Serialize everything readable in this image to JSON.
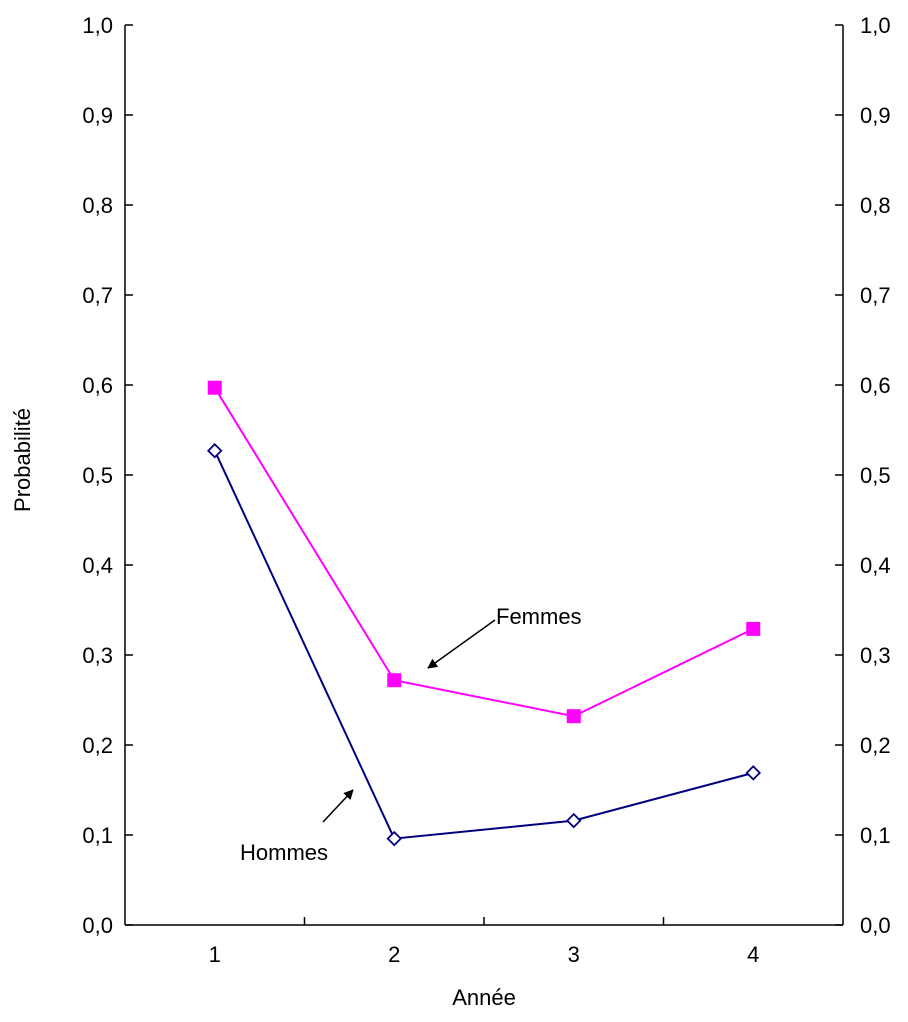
{
  "chart_data": {
    "type": "line",
    "title": "",
    "xlabel": "Année",
    "ylabel": "Probabilité",
    "categories": [
      "1",
      "2",
      "3",
      "4"
    ],
    "ylim": [
      0.0,
      1.0
    ],
    "yticks": [
      "0,0",
      "0,1",
      "0,2",
      "0,3",
      "0,4",
      "0,5",
      "0,6",
      "0,7",
      "0,8",
      "0,9",
      "1,0"
    ],
    "right_axis": true,
    "grid": false,
    "series": [
      {
        "name": "Femmes",
        "values": [
          0.597,
          0.272,
          0.232,
          0.329
        ],
        "color": "#ff00ff",
        "marker": "square-filled"
      },
      {
        "name": "Hommes",
        "values": [
          0.527,
          0.096,
          0.116,
          0.169
        ],
        "color": "#000080",
        "marker": "diamond-open"
      }
    ],
    "annotations": [
      {
        "text": "Femmes",
        "series": "Femmes"
      },
      {
        "text": "Hommes",
        "series": "Hommes"
      }
    ]
  }
}
